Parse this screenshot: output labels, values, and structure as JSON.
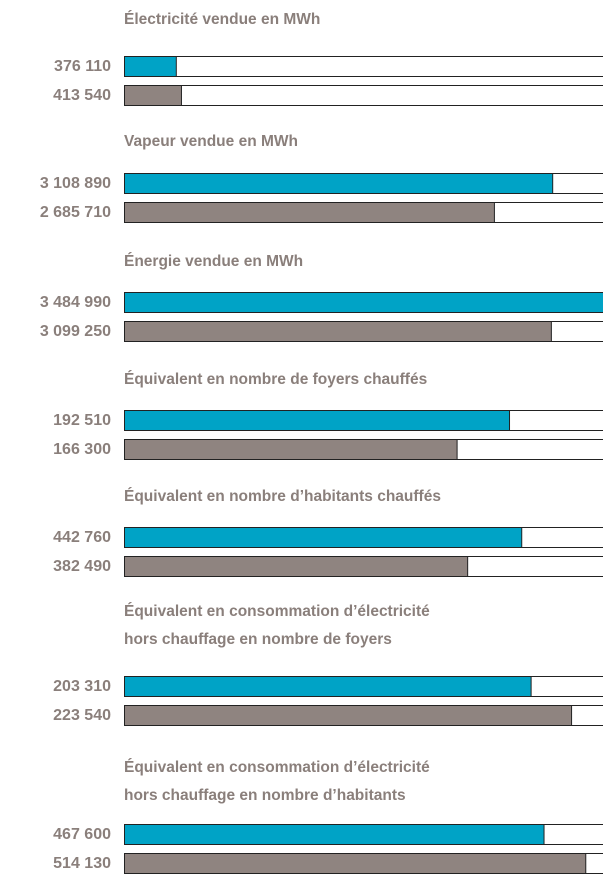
{
  "chart_data": [
    {
      "type": "bar",
      "title": [
        "Électricité vendue en MWh"
      ],
      "categories": [
        null,
        null
      ],
      "values": [
        376110,
        413540
      ],
      "value_labels": [
        "376 110",
        "413 540"
      ],
      "colors": [
        "#00a3c6",
        "#8f8480"
      ],
      "xlim": [
        0,
        3484990
      ]
    },
    {
      "type": "bar",
      "title": [
        "Vapeur vendue en MWh"
      ],
      "categories": [
        null,
        null
      ],
      "values": [
        3108890,
        2685710
      ],
      "value_labels": [
        "3 108 890",
        "2 685 710"
      ],
      "colors": [
        "#00a3c6",
        "#8f8480"
      ],
      "xlim": [
        0,
        3484990
      ]
    },
    {
      "type": "bar",
      "title": [
        "Énergie vendue en MWh"
      ],
      "categories": [
        null,
        null
      ],
      "values": [
        3484990,
        3099250
      ],
      "value_labels": [
        "3 484 990",
        "3 099 250"
      ],
      "colors": [
        "#00a3c6",
        "#8f8480"
      ],
      "xlim": [
        0,
        3484990
      ]
    },
    {
      "type": "bar",
      "title": [
        "Équivalent en nombre de foyers chauffés"
      ],
      "categories": [
        null,
        null
      ],
      "values": [
        192510,
        166300
      ],
      "value_labels": [
        "192 510",
        "166 300"
      ],
      "colors": [
        "#00a3c6",
        "#8f8480"
      ],
      "xlim": [
        0,
        240000
      ]
    },
    {
      "type": "bar",
      "title": [
        "Équivalent en nombre d’habitants chauffés"
      ],
      "categories": [
        null,
        null
      ],
      "values": [
        442760,
        382490
      ],
      "value_labels": [
        "442 760",
        "382 490"
      ],
      "colors": [
        "#00a3c6",
        "#8f8480"
      ],
      "xlim": [
        0,
        535000
      ]
    },
    {
      "type": "bar",
      "title": [
        "Équivalent en consommation d’électricité",
        "hors chauffage en nombre de foyers"
      ],
      "categories": [
        null,
        null
      ],
      "values": [
        203310,
        223540
      ],
      "value_labels": [
        "203 310",
        "223 540"
      ],
      "colors": [
        "#00a3c6",
        "#8f8480"
      ],
      "xlim": [
        0,
        240000
      ]
    },
    {
      "type": "bar",
      "title": [
        "Équivalent en consommation d’électricité",
        "hors chauffage en nombre d’habitants"
      ],
      "categories": [
        null,
        null
      ],
      "values": [
        467600,
        514130
      ],
      "value_labels": [
        "467 600",
        "514 130"
      ],
      "colors": [
        "#00a3c6",
        "#8f8480"
      ],
      "xlim": [
        0,
        535000
      ]
    }
  ]
}
